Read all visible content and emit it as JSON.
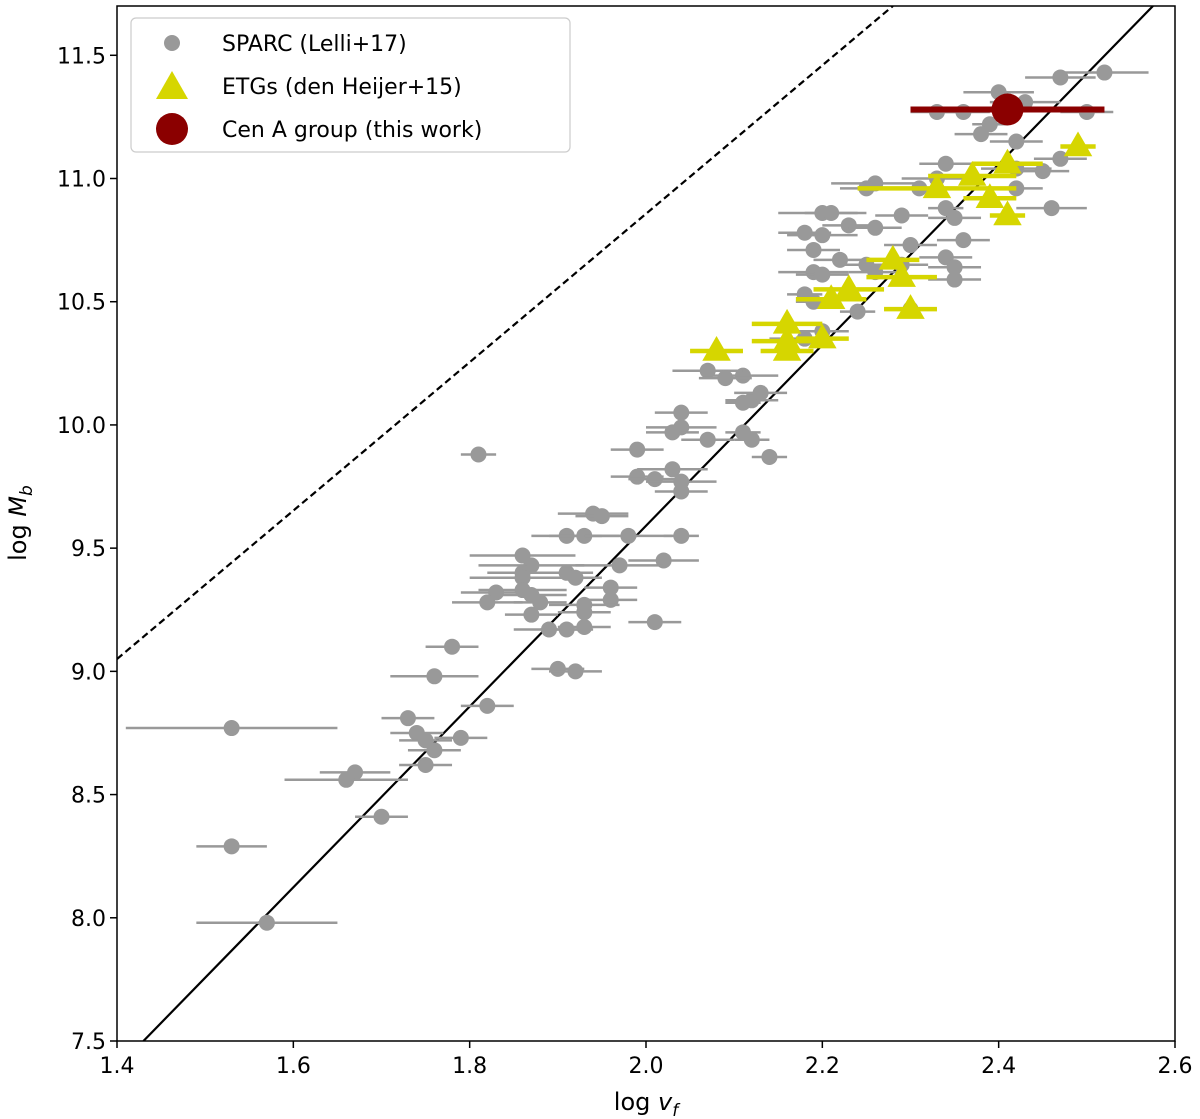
{
  "chart_data": {
    "type": "scatter",
    "xlabel": "log v_f",
    "ylabel": "log M_b",
    "xlabel_parts": {
      "prefix": "log ",
      "italic": "v",
      "sub": "f"
    },
    "ylabel_parts": {
      "prefix": "log ",
      "italic": "M",
      "sub": "b"
    },
    "xlim": [
      1.4,
      2.6
    ],
    "ylim": [
      7.5,
      11.7
    ],
    "xticks": [
      1.4,
      1.6,
      1.8,
      2.0,
      2.2,
      2.4,
      2.6
    ],
    "yticks": [
      7.5,
      8.0,
      8.5,
      9.0,
      9.5,
      10.0,
      10.5,
      11.0,
      11.5
    ],
    "xtick_labels": [
      "1.4",
      "1.6",
      "1.8",
      "2.0",
      "2.2",
      "2.4",
      "2.6"
    ],
    "ytick_labels": [
      "7.5",
      "8.0",
      "8.5",
      "9.0",
      "9.5",
      "10.0",
      "10.5",
      "11.0",
      "11.5"
    ],
    "grid": false,
    "legend_position": "top-left",
    "lines": [
      {
        "name": "fit",
        "style": "solid",
        "color": "#000000",
        "points": [
          [
            1.43,
            7.5
          ],
          [
            2.575,
            11.7
          ]
        ]
      },
      {
        "name": "reference",
        "style": "dashed",
        "color": "#000000",
        "points": [
          [
            1.4,
            9.05
          ],
          [
            2.28,
            11.7
          ]
        ]
      }
    ],
    "series": [
      {
        "name": "SPARC (Lelli+17)",
        "marker": "circle",
        "color": "#999999",
        "points": [
          [
            2.52,
            11.43,
            0.05
          ],
          [
            2.47,
            11.41,
            0.04
          ],
          [
            2.4,
            11.35,
            0.04
          ],
          [
            2.43,
            11.31,
            0.04
          ],
          [
            2.5,
            11.27,
            0.03
          ],
          [
            2.33,
            11.27,
            0.03
          ],
          [
            2.36,
            11.27,
            0.03
          ],
          [
            2.39,
            11.22,
            0.02
          ],
          [
            2.38,
            11.18,
            0.03
          ],
          [
            2.42,
            11.15,
            0.03
          ],
          [
            2.42,
            11.04,
            0.04
          ],
          [
            2.45,
            11.03,
            0.03
          ],
          [
            2.47,
            11.08,
            0.03
          ],
          [
            2.34,
            11.06,
            0.03
          ],
          [
            2.33,
            11.0,
            0.04
          ],
          [
            2.26,
            10.98,
            0.05
          ],
          [
            2.25,
            10.96,
            0.03
          ],
          [
            2.31,
            10.96,
            0.03
          ],
          [
            2.42,
            10.96,
            0.03
          ],
          [
            2.34,
            10.88,
            0.02
          ],
          [
            2.46,
            10.88,
            0.04
          ],
          [
            2.2,
            10.86,
            0.05
          ],
          [
            2.21,
            10.86,
            0.03
          ],
          [
            2.29,
            10.85,
            0.03
          ],
          [
            2.35,
            10.84,
            0.03
          ],
          [
            2.2,
            10.77,
            0.04
          ],
          [
            2.36,
            10.75,
            0.03
          ],
          [
            2.18,
            10.78,
            0.03
          ],
          [
            2.23,
            10.81,
            0.03
          ],
          [
            2.26,
            10.8,
            0.03
          ],
          [
            2.3,
            10.73,
            0.03
          ],
          [
            2.19,
            10.71,
            0.03
          ],
          [
            2.22,
            10.67,
            0.03
          ],
          [
            2.25,
            10.65,
            0.03
          ],
          [
            2.29,
            10.65,
            0.03
          ],
          [
            2.34,
            10.68,
            0.03
          ],
          [
            2.35,
            10.64,
            0.03
          ],
          [
            2.26,
            10.62,
            0.03
          ],
          [
            2.19,
            10.62,
            0.04
          ],
          [
            2.2,
            10.61,
            0.03
          ],
          [
            2.35,
            10.59,
            0.03
          ],
          [
            2.18,
            10.53,
            0.02
          ],
          [
            2.19,
            10.5,
            0.02
          ],
          [
            2.24,
            10.46,
            0.02
          ],
          [
            2.3,
            10.47,
            0.03
          ],
          [
            2.18,
            10.35,
            0.04
          ],
          [
            2.2,
            10.38,
            0.03
          ],
          [
            2.11,
            10.2,
            0.04
          ],
          [
            2.07,
            10.22,
            0.04
          ],
          [
            2.09,
            10.19,
            0.03
          ],
          [
            2.12,
            10.1,
            0.03
          ],
          [
            2.13,
            10.13,
            0.03
          ],
          [
            2.11,
            10.09,
            0.02
          ],
          [
            2.04,
            10.05,
            0.03
          ],
          [
            2.04,
            9.99,
            0.04
          ],
          [
            2.03,
            9.97,
            0.03
          ],
          [
            2.11,
            9.97,
            0.02
          ],
          [
            2.12,
            9.94,
            0.02
          ],
          [
            2.07,
            9.94,
            0.03
          ],
          [
            1.99,
            9.9,
            0.03
          ],
          [
            1.99,
            9.79,
            0.03
          ],
          [
            2.03,
            9.82,
            0.04
          ],
          [
            2.01,
            9.78,
            0.03
          ],
          [
            2.04,
            9.77,
            0.04
          ],
          [
            1.81,
            9.88,
            0.02
          ],
          [
            2.14,
            9.87,
            0.02
          ],
          [
            2.04,
            9.73,
            0.03
          ],
          [
            1.94,
            9.64,
            0.04
          ],
          [
            1.95,
            9.63,
            0.03
          ],
          [
            1.91,
            9.55,
            0.04
          ],
          [
            1.93,
            9.55,
            0.04
          ],
          [
            1.98,
            9.55,
            0.05
          ],
          [
            2.04,
            9.55,
            0.02
          ],
          [
            1.86,
            9.47,
            0.06
          ],
          [
            2.02,
            9.45,
            0.04
          ],
          [
            1.87,
            9.43,
            0.06
          ],
          [
            1.97,
            9.43,
            0.05
          ],
          [
            1.86,
            9.4,
            0.04
          ],
          [
            1.86,
            9.38,
            0.06
          ],
          [
            1.91,
            9.4,
            0.03
          ],
          [
            1.92,
            9.38,
            0.03
          ],
          [
            1.86,
            9.33,
            0.05
          ],
          [
            1.87,
            9.31,
            0.04
          ],
          [
            1.83,
            9.32,
            0.04
          ],
          [
            1.96,
            9.34,
            0.03
          ],
          [
            1.88,
            9.28,
            0.03
          ],
          [
            1.82,
            9.28,
            0.04
          ],
          [
            1.96,
            9.29,
            0.03
          ],
          [
            1.93,
            9.27,
            0.04
          ],
          [
            1.93,
            9.24,
            0.03
          ],
          [
            1.87,
            9.23,
            0.03
          ],
          [
            2.01,
            9.2,
            0.03
          ],
          [
            1.91,
            9.17,
            0.03
          ],
          [
            1.89,
            9.17,
            0.04
          ],
          [
            1.93,
            9.18,
            0.03
          ],
          [
            1.78,
            9.1,
            0.03
          ],
          [
            1.9,
            9.01,
            0.03
          ],
          [
            1.92,
            9.0,
            0.03
          ],
          [
            1.76,
            8.98,
            0.05
          ],
          [
            1.82,
            8.86,
            0.03
          ],
          [
            1.53,
            8.77,
            0.12
          ],
          [
            1.73,
            8.81,
            0.03
          ],
          [
            1.74,
            8.75,
            0.03
          ],
          [
            1.75,
            8.72,
            0.03
          ],
          [
            1.76,
            8.68,
            0.03
          ],
          [
            1.79,
            8.73,
            0.03
          ],
          [
            1.75,
            8.62,
            0.03
          ],
          [
            1.67,
            8.59,
            0.04
          ],
          [
            1.66,
            8.56,
            0.07
          ],
          [
            1.7,
            8.41,
            0.03
          ],
          [
            1.53,
            8.29,
            0.04
          ],
          [
            1.57,
            7.98,
            0.08
          ]
        ]
      },
      {
        "name": "ETGs (den Heijer+15)",
        "marker": "triangle",
        "color": "#d6d600",
        "points": [
          [
            2.49,
            11.13,
            0.02
          ],
          [
            2.41,
            11.06,
            0.04
          ],
          [
            2.37,
            11.01,
            0.05
          ],
          [
            2.33,
            10.96,
            0.09
          ],
          [
            2.39,
            10.92,
            0.03
          ],
          [
            2.41,
            10.85,
            0.02
          ],
          [
            2.28,
            10.67,
            0.03
          ],
          [
            2.29,
            10.6,
            0.04
          ],
          [
            2.23,
            10.55,
            0.04
          ],
          [
            2.21,
            10.51,
            0.04
          ],
          [
            2.3,
            10.47,
            0.03
          ],
          [
            2.16,
            10.41,
            0.04
          ],
          [
            2.16,
            10.34,
            0.04
          ],
          [
            2.2,
            10.35,
            0.03
          ],
          [
            2.16,
            10.3,
            0.03
          ],
          [
            2.08,
            10.3,
            0.03
          ]
        ]
      },
      {
        "name": "Cen A group (this work)",
        "marker": "big-circle",
        "color": "#8b0000",
        "points": [
          [
            2.41,
            11.28,
            0.11
          ]
        ]
      }
    ],
    "legend": [
      {
        "label": "SPARC (Lelli+17)",
        "marker": "circle",
        "color": "#999999"
      },
      {
        "label": "ETGs (den Heijer+15)",
        "marker": "triangle",
        "color": "#d6d600"
      },
      {
        "label": "Cen A group (this work)",
        "marker": "big-circle",
        "color": "#8b0000"
      }
    ]
  }
}
